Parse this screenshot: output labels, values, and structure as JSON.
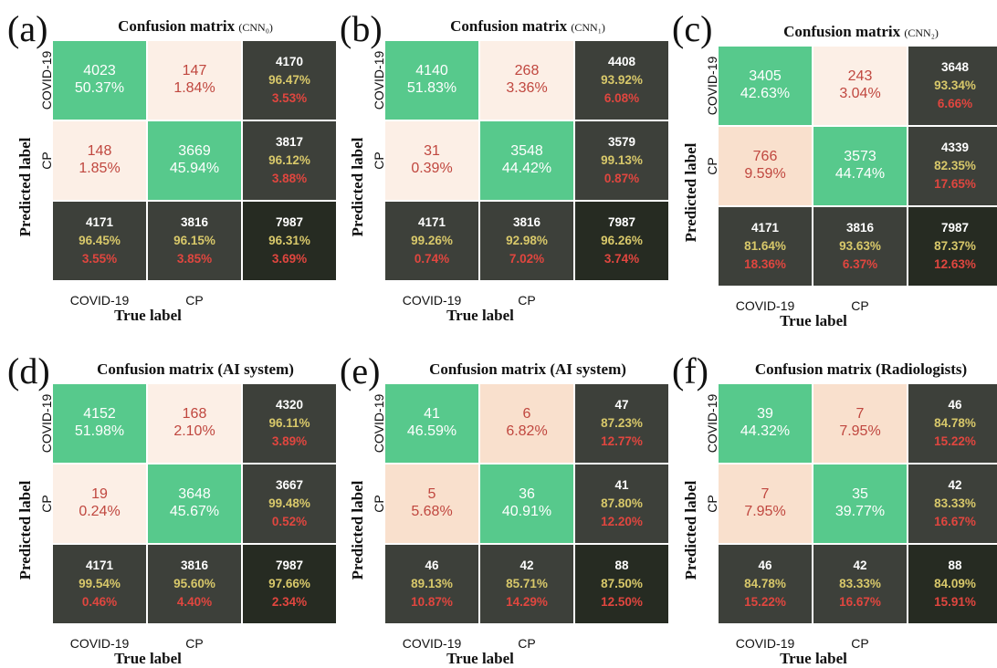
{
  "chart_data": [
    {
      "panel": "(a)",
      "type": "heatmap",
      "title": "Confusion matrix",
      "title_sub": "(CNN₀)",
      "ylabel": "Predicted label",
      "xlabel": "True label",
      "row_labels": [
        "COVID-19",
        "CP"
      ],
      "col_labels": [
        "COVID-19",
        "CP"
      ],
      "cells": [
        [
          {
            "n": "4023",
            "p": "50.37%"
          },
          {
            "n": "147",
            "p": "1.84%"
          },
          {
            "n": "4170",
            "p": "96.47%",
            "q": "3.53%"
          }
        ],
        [
          {
            "n": "148",
            "p": "1.85%"
          },
          {
            "n": "3669",
            "p": "45.94%"
          },
          {
            "n": "3817",
            "p": "96.12%",
            "q": "3.88%"
          }
        ],
        [
          {
            "n": "4171",
            "p": "96.45%",
            "q": "3.55%"
          },
          {
            "n": "3816",
            "p": "96.15%",
            "q": "3.85%"
          },
          {
            "n": "7987",
            "p": "96.31%",
            "q": "3.69%"
          }
        ]
      ]
    },
    {
      "panel": "(b)",
      "type": "heatmap",
      "title": "Confusion matrix",
      "title_sub": "(CNN₁)",
      "ylabel": "Predicted label",
      "xlabel": "True label",
      "row_labels": [
        "COVID-19",
        "CP"
      ],
      "col_labels": [
        "COVID-19",
        "CP"
      ],
      "cells": [
        [
          {
            "n": "4140",
            "p": "51.83%"
          },
          {
            "n": "268",
            "p": "3.36%"
          },
          {
            "n": "4408",
            "p": "93.92%",
            "q": "6.08%"
          }
        ],
        [
          {
            "n": "31",
            "p": "0.39%"
          },
          {
            "n": "3548",
            "p": "44.42%"
          },
          {
            "n": "3579",
            "p": "99.13%",
            "q": "0.87%"
          }
        ],
        [
          {
            "n": "4171",
            "p": "99.26%",
            "q": "0.74%"
          },
          {
            "n": "3816",
            "p": "92.98%",
            "q": "7.02%"
          },
          {
            "n": "7987",
            "p": "96.26%",
            "q": "3.74%"
          }
        ]
      ]
    },
    {
      "panel": "(c)",
      "type": "heatmap",
      "title": "Confusion matrix",
      "title_sub": "(CNN₂)",
      "ylabel": "Predicted label",
      "xlabel": "True label",
      "row_labels": [
        "COVID-19",
        "CP"
      ],
      "col_labels": [
        "COVID-19",
        "CP"
      ],
      "cells": [
        [
          {
            "n": "3405",
            "p": "42.63%"
          },
          {
            "n": "243",
            "p": "3.04%"
          },
          {
            "n": "3648",
            "p": "93.34%",
            "q": "6.66%"
          }
        ],
        [
          {
            "n": "766",
            "p": "9.59%"
          },
          {
            "n": "3573",
            "p": "44.74%"
          },
          {
            "n": "4339",
            "p": "82.35%",
            "q": "17.65%"
          }
        ],
        [
          {
            "n": "4171",
            "p": "81.64%",
            "q": "18.36%"
          },
          {
            "n": "3816",
            "p": "93.63%",
            "q": "6.37%"
          },
          {
            "n": "7987",
            "p": "87.37%",
            "q": "12.63%"
          }
        ]
      ]
    },
    {
      "panel": "(d)",
      "type": "heatmap",
      "title": "Confusion matrix (AI system)",
      "title_sub": "",
      "ylabel": "Predicted label",
      "xlabel": "True label",
      "row_labels": [
        "COVID-19",
        "CP"
      ],
      "col_labels": [
        "COVID-19",
        "CP"
      ],
      "cells": [
        [
          {
            "n": "4152",
            "p": "51.98%"
          },
          {
            "n": "168",
            "p": "2.10%"
          },
          {
            "n": "4320",
            "p": "96.11%",
            "q": "3.89%"
          }
        ],
        [
          {
            "n": "19",
            "p": "0.24%"
          },
          {
            "n": "3648",
            "p": "45.67%"
          },
          {
            "n": "3667",
            "p": "99.48%",
            "q": "0.52%"
          }
        ],
        [
          {
            "n": "4171",
            "p": "99.54%",
            "q": "0.46%"
          },
          {
            "n": "3816",
            "p": "95.60%",
            "q": "4.40%"
          },
          {
            "n": "7987",
            "p": "97.66%",
            "q": "2.34%"
          }
        ]
      ]
    },
    {
      "panel": "(e)",
      "type": "heatmap",
      "title": "Confusion matrix (AI system)",
      "title_sub": "",
      "ylabel": "Predicted label",
      "xlabel": "True label",
      "row_labels": [
        "COVID-19",
        "CP"
      ],
      "col_labels": [
        "COVID-19",
        "CP"
      ],
      "cells": [
        [
          {
            "n": "41",
            "p": "46.59%"
          },
          {
            "n": "6",
            "p": "6.82%"
          },
          {
            "n": "47",
            "p": "87.23%",
            "q": "12.77%"
          }
        ],
        [
          {
            "n": "5",
            "p": "5.68%"
          },
          {
            "n": "36",
            "p": "40.91%"
          },
          {
            "n": "41",
            "p": "87.80%",
            "q": "12.20%"
          }
        ],
        [
          {
            "n": "46",
            "p": "89.13%",
            "q": "10.87%"
          },
          {
            "n": "42",
            "p": "85.71%",
            "q": "14.29%"
          },
          {
            "n": "88",
            "p": "87.50%",
            "q": "12.50%"
          }
        ]
      ]
    },
    {
      "panel": "(f)",
      "type": "heatmap",
      "title": "Confusion matrix (Radiologists)",
      "title_sub": "",
      "ylabel": "Predicted label",
      "xlabel": "True label",
      "row_labels": [
        "COVID-19",
        "CP"
      ],
      "col_labels": [
        "COVID-19",
        "CP"
      ],
      "cells": [
        [
          {
            "n": "39",
            "p": "44.32%"
          },
          {
            "n": "7",
            "p": "7.95%"
          },
          {
            "n": "46",
            "p": "84.78%",
            "q": "15.22%"
          }
        ],
        [
          {
            "n": "7",
            "p": "7.95%"
          },
          {
            "n": "35",
            "p": "39.77%"
          },
          {
            "n": "42",
            "p": "83.33%",
            "q": "16.67%"
          }
        ],
        [
          {
            "n": "46",
            "p": "84.78%",
            "q": "15.22%"
          },
          {
            "n": "42",
            "p": "83.33%",
            "q": "16.67%"
          },
          {
            "n": "88",
            "p": "84.09%",
            "q": "15.91%"
          }
        ]
      ]
    }
  ],
  "colors": {
    "true_positive": "#57c98c",
    "off_diagonal": "#fcefe6",
    "off_diagonal_high": "#f9e0cd",
    "summary_dark": "#3d403a",
    "summary_total": "#262b22",
    "text_white": "#ffffff",
    "text_yellow": "#d8c86a",
    "text_red": "#e0463f",
    "text_offdiag": "#c0473f"
  }
}
